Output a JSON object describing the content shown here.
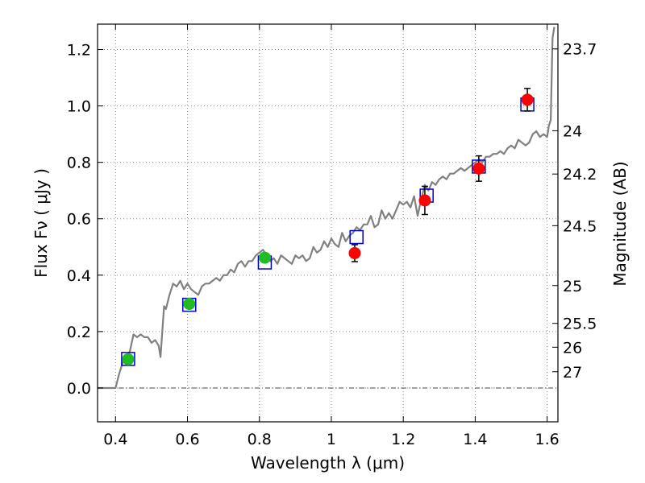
{
  "chart_data": {
    "type": "scatter",
    "xlabel": "Wavelength  λ (μm)",
    "ylabel": "Flux  Fν  ( μJy )",
    "y2label": "Magnitude (AB)",
    "xlim": [
      0.35,
      1.63
    ],
    "ylim": [
      -0.12,
      1.29
    ],
    "x_ticks": [
      {
        "value": 0.4,
        "label": "0.4"
      },
      {
        "value": 0.6,
        "label": "0.6"
      },
      {
        "value": 0.8,
        "label": "0.8"
      },
      {
        "value": 1.0,
        "label": "1"
      },
      {
        "value": 1.2,
        "label": "1.2"
      },
      {
        "value": 1.4,
        "label": "1.4"
      },
      {
        "value": 1.6,
        "label": "1.6"
      }
    ],
    "y_ticks": [
      {
        "value": 0.0,
        "label": "0.0"
      },
      {
        "value": 0.2,
        "label": "0.2"
      },
      {
        "value": 0.4,
        "label": "0.4"
      },
      {
        "value": 0.6,
        "label": "0.6"
      },
      {
        "value": 0.8,
        "label": "0.8"
      },
      {
        "value": 1.0,
        "label": "1.0"
      },
      {
        "value": 1.2,
        "label": "1.2"
      }
    ],
    "y2_ticks": [
      {
        "value": 23.7,
        "label": "23.7"
      },
      {
        "value": 24,
        "label": "24"
      },
      {
        "value": 24.2,
        "label": "24.2"
      },
      {
        "value": 24.5,
        "label": "24.5"
      },
      {
        "value": 25,
        "label": "25"
      },
      {
        "value": 25.5,
        "label": "25.5"
      },
      {
        "value": 26,
        "label": "26"
      },
      {
        "value": 27,
        "label": "27"
      }
    ],
    "grid": true,
    "zero_line": true,
    "colors": {
      "model": "#808080",
      "green": "#22bb22",
      "red": "#ff0000",
      "box": "#0000cc",
      "error": "#000000",
      "grid": "#888888"
    },
    "model_spectrum": {
      "x": [
        0.35,
        0.4,
        0.41,
        0.42,
        0.43,
        0.44,
        0.45,
        0.46,
        0.47,
        0.48,
        0.49,
        0.5,
        0.51,
        0.52,
        0.525,
        0.53,
        0.535,
        0.54,
        0.55,
        0.56,
        0.57,
        0.58,
        0.59,
        0.6,
        0.61,
        0.62,
        0.63,
        0.64,
        0.65,
        0.66,
        0.67,
        0.68,
        0.69,
        0.7,
        0.71,
        0.72,
        0.73,
        0.74,
        0.75,
        0.76,
        0.77,
        0.78,
        0.79,
        0.8,
        0.81,
        0.82,
        0.83,
        0.84,
        0.85,
        0.86,
        0.87,
        0.88,
        0.89,
        0.9,
        0.91,
        0.92,
        0.93,
        0.94,
        0.95,
        0.96,
        0.97,
        0.98,
        0.99,
        1.0,
        1.01,
        1.02,
        1.03,
        1.04,
        1.05,
        1.06,
        1.07,
        1.08,
        1.09,
        1.1,
        1.11,
        1.12,
        1.13,
        1.14,
        1.15,
        1.16,
        1.17,
        1.18,
        1.19,
        1.2,
        1.21,
        1.22,
        1.23,
        1.24,
        1.25,
        1.26,
        1.27,
        1.28,
        1.29,
        1.3,
        1.31,
        1.32,
        1.33,
        1.34,
        1.35,
        1.36,
        1.37,
        1.38,
        1.39,
        1.4,
        1.41,
        1.42,
        1.43,
        1.44,
        1.45,
        1.46,
        1.47,
        1.48,
        1.49,
        1.5,
        1.51,
        1.52,
        1.53,
        1.54,
        1.55,
        1.56,
        1.57,
        1.58,
        1.59,
        1.6,
        1.605,
        1.61,
        1.615,
        1.62
      ],
      "y": [
        0.0,
        0.0,
        0.05,
        0.09,
        0.11,
        0.13,
        0.19,
        0.18,
        0.19,
        0.18,
        0.18,
        0.16,
        0.17,
        0.15,
        0.11,
        0.2,
        0.29,
        0.28,
        0.33,
        0.37,
        0.36,
        0.38,
        0.35,
        0.37,
        0.35,
        0.34,
        0.33,
        0.36,
        0.37,
        0.37,
        0.38,
        0.39,
        0.38,
        0.4,
        0.4,
        0.42,
        0.41,
        0.44,
        0.45,
        0.43,
        0.45,
        0.45,
        0.47,
        0.48,
        0.49,
        0.47,
        0.45,
        0.46,
        0.44,
        0.47,
        0.46,
        0.45,
        0.44,
        0.47,
        0.46,
        0.47,
        0.45,
        0.46,
        0.5,
        0.48,
        0.49,
        0.52,
        0.5,
        0.53,
        0.51,
        0.5,
        0.55,
        0.52,
        0.54,
        0.55,
        0.57,
        0.56,
        0.58,
        0.58,
        0.61,
        0.57,
        0.58,
        0.63,
        0.6,
        0.62,
        0.6,
        0.63,
        0.66,
        0.65,
        0.66,
        0.64,
        0.68,
        0.61,
        0.67,
        0.72,
        0.7,
        0.73,
        0.72,
        0.74,
        0.75,
        0.74,
        0.76,
        0.76,
        0.77,
        0.78,
        0.77,
        0.78,
        0.79,
        0.8,
        0.81,
        0.8,
        0.82,
        0.82,
        0.83,
        0.83,
        0.84,
        0.83,
        0.85,
        0.86,
        0.85,
        0.88,
        0.87,
        0.86,
        0.87,
        0.9,
        0.91,
        0.89,
        0.9,
        0.89,
        0.93,
        0.95,
        1.24,
        1.28
      ]
    },
    "series": [
      {
        "marker": "green-circle",
        "x": [
          0.435,
          0.605,
          0.815
        ],
        "y": [
          0.102,
          0.298,
          0.462
        ],
        "err": [
          0.01,
          0.012,
          0.012
        ]
      },
      {
        "marker": "red-circle",
        "x": [
          1.065,
          1.26,
          1.41,
          1.545
        ],
        "y": [
          0.478,
          0.665,
          0.778,
          1.022
        ],
        "err": [
          0.03,
          0.05,
          0.045,
          0.04
        ]
      },
      {
        "marker": "blue-open-square",
        "x": [
          0.435,
          0.605,
          0.815,
          1.07,
          1.265,
          1.41,
          1.545
        ],
        "y": [
          0.103,
          0.295,
          0.445,
          0.535,
          0.682,
          0.785,
          1.005
        ]
      }
    ]
  }
}
